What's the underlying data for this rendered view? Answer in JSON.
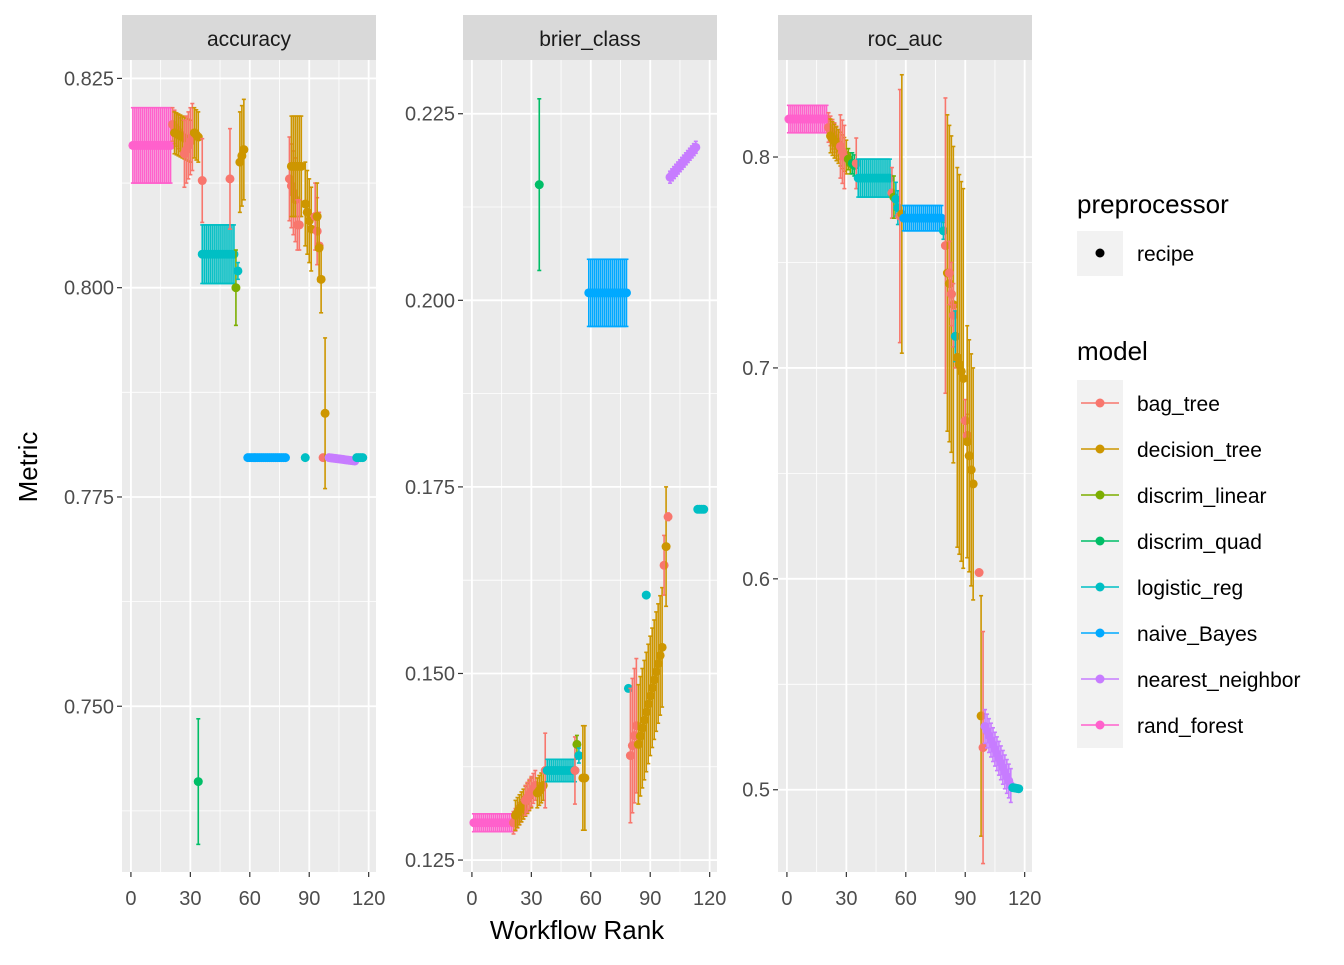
{
  "chart_data": {
    "type": "scatter",
    "subtype": "point-range faceted",
    "xlabel": "Workflow Rank",
    "ylabel": "Metric",
    "xlim": [
      -4.5,
      123.7
    ],
    "xticks": [
      0,
      30,
      60,
      90,
      120
    ],
    "grid": true,
    "legend_position": "right",
    "legend": {
      "preprocessor": {
        "title": "preprocessor",
        "entries": [
          "recipe"
        ]
      },
      "model": {
        "title": "model",
        "entries": [
          "bag_tree",
          "decision_tree",
          "discrim_linear",
          "discrim_quad",
          "logistic_reg",
          "naive_Bayes",
          "nearest_neighbor",
          "rand_forest"
        ],
        "colors": [
          "#F8766D",
          "#CD9600",
          "#7CAE00",
          "#00BE67",
          "#00BFC4",
          "#00A9FF",
          "#C77CFF",
          "#FF61CC"
        ]
      }
    },
    "run_format": [
      "model",
      "rank_start",
      "rank_end",
      "mean_start",
      "mean_end",
      "std_err_halfwidth"
    ],
    "facets": [
      {
        "title": "accuracy",
        "ylim": [
          0.7302,
          0.8272
        ],
        "yticks": [
          0.75,
          0.775,
          0.8,
          0.825
        ],
        "ytick_labels": [
          "0.750",
          "0.775",
          "0.800",
          "0.825"
        ],
        "runs": [
          [
            "rand_forest",
            1,
            20,
            0.817,
            0.817,
            0.0045
          ],
          [
            "bag_tree",
            21,
            26,
            0.8195,
            0.818,
            0.002
          ],
          [
            "decision_tree",
            22,
            30,
            0.8185,
            0.8175,
            0.0025
          ],
          [
            "bag_tree",
            27,
            31,
            0.816,
            0.818,
            0.004
          ],
          [
            "decision_tree",
            32,
            34,
            0.8185,
            0.818,
            0.003
          ],
          [
            "bag_tree",
            36,
            36,
            0.8128,
            0.8128,
            0.005
          ],
          [
            "discrim_quad",
            34,
            34,
            0.741,
            0.741,
            0.0075
          ],
          [
            "logistic_reg",
            36,
            52,
            0.804,
            0.804,
            0.0035
          ],
          [
            "bag_tree",
            50,
            50,
            0.813,
            0.813,
            0.006
          ],
          [
            "discrim_linear",
            53,
            53,
            0.8,
            0.8,
            0.0045
          ],
          [
            "logistic_reg",
            54,
            54,
            0.802,
            0.802,
            0.001
          ],
          [
            "decision_tree",
            55,
            57,
            0.815,
            0.8165,
            0.006
          ],
          [
            "naive_Bayes",
            59,
            78,
            0.7797,
            0.7797,
            0.0002
          ],
          [
            "bag_tree",
            80,
            83,
            0.813,
            0.8105,
            0.005
          ],
          [
            "decision_tree",
            81,
            86,
            0.8145,
            0.8145,
            0.006
          ],
          [
            "bag_tree",
            84,
            85,
            0.8075,
            0.8075,
            0.003
          ],
          [
            "logistic_reg",
            88,
            88,
            0.7797,
            0.7797,
            0.0001
          ],
          [
            "decision_tree",
            88,
            91,
            0.81,
            0.807,
            0.005
          ],
          [
            "bag_tree",
            93,
            95,
            0.8085,
            0.805,
            0.004
          ],
          [
            "decision_tree",
            94,
            96,
            0.8085,
            0.801,
            0.004
          ],
          [
            "bag_tree",
            97,
            97,
            0.7797,
            0.7797,
            0.0001
          ],
          [
            "decision_tree",
            98,
            98,
            0.785,
            0.785,
            0.009
          ],
          [
            "nearest_neighbor",
            100,
            113,
            0.7797,
            0.7793,
            0.0002
          ],
          [
            "logistic_reg",
            114,
            117,
            0.7797,
            0.7797,
            0.0001
          ]
        ]
      },
      {
        "title": "brier_class",
        "ylim": [
          0.1234,
          0.2322
        ],
        "yticks": [
          0.125,
          0.15,
          0.175,
          0.2,
          0.225
        ],
        "ytick_labels": [
          "0.125",
          "0.150",
          "0.175",
          "0.200",
          "0.225"
        ],
        "runs": [
          [
            "rand_forest",
            1,
            20,
            0.13,
            0.13,
            0.0012
          ],
          [
            "bag_tree",
            21,
            26,
            0.13,
            0.132,
            0.0015
          ],
          [
            "decision_tree",
            22,
            30,
            0.131,
            0.134,
            0.002
          ],
          [
            "bag_tree",
            27,
            32,
            0.133,
            0.135,
            0.002
          ],
          [
            "decision_tree",
            33,
            36,
            0.134,
            0.135,
            0.002
          ],
          [
            "discrim_quad",
            34,
            34,
            0.2155,
            0.2155,
            0.0115
          ],
          [
            "bag_tree",
            37,
            37,
            0.137,
            0.137,
            0.005
          ],
          [
            "logistic_reg",
            38,
            52,
            0.137,
            0.137,
            0.0015
          ],
          [
            "bag_tree",
            52,
            52,
            0.137,
            0.137,
            0.0045
          ],
          [
            "discrim_linear",
            53,
            53,
            0.1405,
            0.1405,
            0.0012
          ],
          [
            "logistic_reg",
            54,
            54,
            0.139,
            0.139,
            0.001
          ],
          [
            "decision_tree",
            56,
            57,
            0.136,
            0.136,
            0.007
          ],
          [
            "naive_Bayes",
            59,
            78,
            0.201,
            0.201,
            0.0045
          ],
          [
            "logistic_reg",
            79,
            79,
            0.148,
            0.148,
            0.0002
          ],
          [
            "bag_tree",
            80,
            83,
            0.139,
            0.143,
            0.009
          ],
          [
            "decision_tree",
            84,
            96,
            0.1405,
            0.1535,
            0.008
          ],
          [
            "logistic_reg",
            88,
            88,
            0.1605,
            0.1605,
            0.0002
          ],
          [
            "bag_tree",
            97,
            97,
            0.1645,
            0.1645,
            0.004
          ],
          [
            "decision_tree",
            98,
            98,
            0.167,
            0.167,
            0.008
          ],
          [
            "bag_tree",
            99,
            99,
            0.171,
            0.171,
            0.0005
          ],
          [
            "nearest_neighbor",
            100,
            113,
            0.2165,
            0.2205,
            0.0008
          ],
          [
            "logistic_reg",
            114,
            117,
            0.172,
            0.172,
            0.0002
          ]
        ]
      },
      {
        "title": "roc_auc",
        "ylim": [
          0.461,
          0.846
        ],
        "yticks": [
          0.5,
          0.6,
          0.7,
          0.8
        ],
        "ytick_labels": [
          "0.5",
          "0.6",
          "0.7",
          "0.8"
        ],
        "runs": [
          [
            "rand_forest",
            1,
            20,
            0.818,
            0.818,
            0.0065
          ],
          [
            "bag_tree",
            21,
            26,
            0.814,
            0.806,
            0.007
          ],
          [
            "decision_tree",
            22,
            30,
            0.81,
            0.8,
            0.008
          ],
          [
            "bag_tree",
            27,
            29,
            0.805,
            0.8,
            0.015
          ],
          [
            "discrim_linear",
            31,
            32,
            0.799,
            0.797,
            0.005
          ],
          [
            "discrim_quad",
            33,
            34,
            0.797,
            0.796,
            0.005
          ],
          [
            "bag_tree",
            35,
            35,
            0.797,
            0.797,
            0.012
          ],
          [
            "logistic_reg",
            36,
            52,
            0.79,
            0.79,
            0.009
          ],
          [
            "bag_tree",
            53,
            53,
            0.783,
            0.783,
            0.012
          ],
          [
            "discrim_linear",
            54,
            54,
            0.781,
            0.781,
            0.01
          ],
          [
            "logistic_reg",
            55,
            56,
            0.78,
            0.776,
            0.008
          ],
          [
            "bag_tree",
            57,
            57,
            0.772,
            0.772,
            0.06
          ],
          [
            "decision_tree",
            58,
            58,
            0.773,
            0.773,
            0.066
          ],
          [
            "naive_Bayes",
            59,
            78,
            0.771,
            0.771,
            0.006
          ],
          [
            "logistic_reg",
            79,
            79,
            0.765,
            0.765,
            0.004
          ],
          [
            "bag_tree",
            80,
            80,
            0.758,
            0.758,
            0.07
          ],
          [
            "decision_tree",
            81,
            84,
            0.745,
            0.73,
            0.075
          ],
          [
            "bag_tree",
            82,
            85,
            0.745,
            0.715,
            0.015
          ],
          [
            "logistic_reg",
            85,
            85,
            0.715,
            0.715,
            0.012
          ],
          [
            "decision_tree",
            86,
            89,
            0.705,
            0.695,
            0.09
          ],
          [
            "bag_tree",
            90,
            91,
            0.675,
            0.668,
            0.01
          ],
          [
            "decision_tree",
            91,
            94,
            0.665,
            0.645,
            0.055
          ],
          [
            "bag_tree",
            97,
            97,
            0.603,
            0.603,
            0.001
          ],
          [
            "decision_tree",
            98,
            98,
            0.535,
            0.535,
            0.057
          ],
          [
            "bag_tree",
            99,
            99,
            0.52,
            0.52,
            0.055
          ],
          [
            "nearest_neighbor",
            100,
            113,
            0.53,
            0.502,
            0.008
          ],
          [
            "logistic_reg",
            114,
            117,
            0.501,
            0.5005,
            0.001
          ]
        ]
      }
    ]
  }
}
